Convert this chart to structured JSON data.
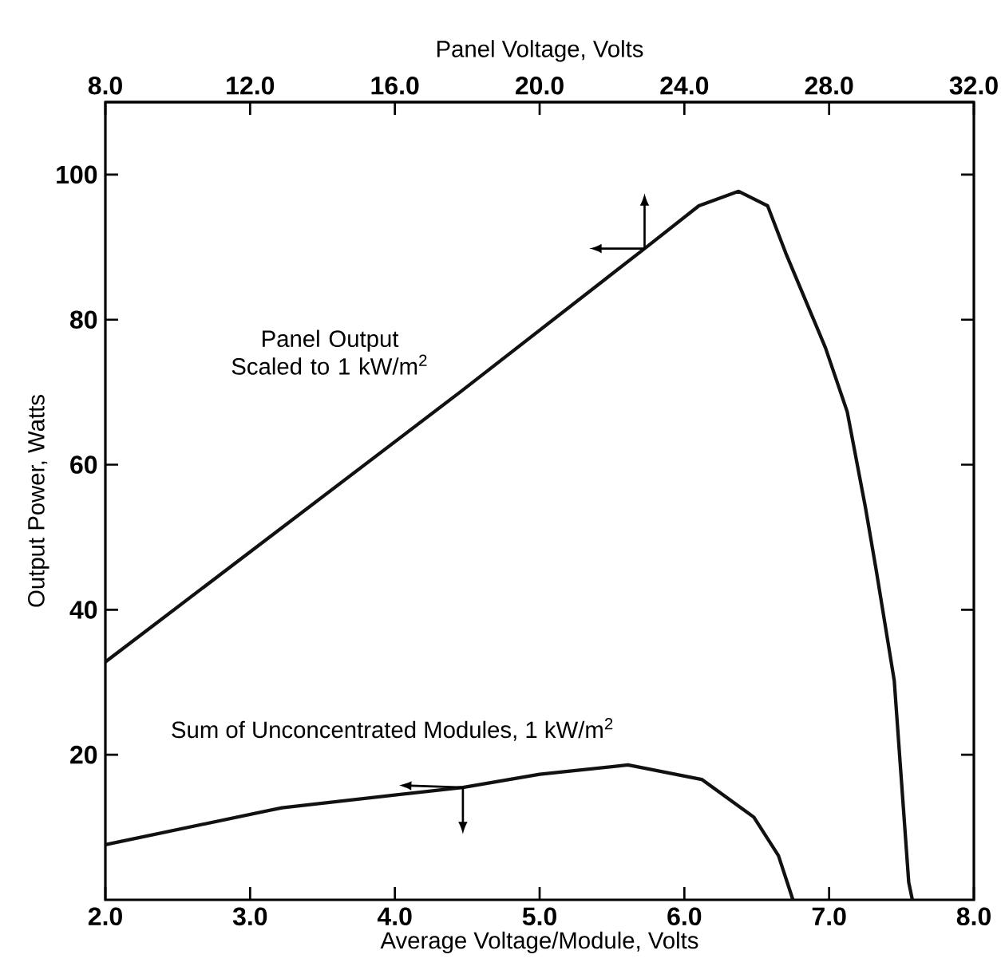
{
  "chart_data": {
    "type": "line",
    "xlabel": "Average Voltage/Module, Volts",
    "x2label": "Panel Voltage, Volts",
    "ylabel": "Output Power, Watts",
    "xlim": [
      2.0,
      8.0
    ],
    "xticks": [
      {
        "value": 2,
        "label": "2.0"
      },
      {
        "value": 3,
        "label": "3.0"
      },
      {
        "value": 4,
        "label": "4.0"
      },
      {
        "value": 5,
        "label": "5.0"
      },
      {
        "value": 6,
        "label": "6.0"
      },
      {
        "value": 7,
        "label": "7.0"
      },
      {
        "value": 8,
        "label": "8.0"
      }
    ],
    "x2lim": [
      8.0,
      32.0
    ],
    "x2ticks": [
      {
        "value": 8,
        "label": "8.0"
      },
      {
        "value": 12,
        "label": "12.0"
      },
      {
        "value": 16,
        "label": "16.0"
      },
      {
        "value": 20,
        "label": "20.0"
      },
      {
        "value": 24,
        "label": "24.0"
      },
      {
        "value": 28,
        "label": "28.0"
      },
      {
        "value": 32,
        "label": "32.0"
      }
    ],
    "ylim": [
      0,
      110
    ],
    "yticks": [
      20,
      40,
      60,
      80,
      100
    ],
    "grid": false,
    "marker": "none",
    "line_style": "solid",
    "series": [
      {
        "name": "Panel Output Scaled to 1 kW/m$^{2}$",
        "axis": "x2",
        "color": "#111111",
        "x": [
          8.0,
          17.8,
          22.9,
          24.4,
          25.5,
          26.3,
          26.8,
          27.9,
          28.5,
          29.0,
          29.3,
          29.8,
          30.2,
          30.3
        ],
        "values": [
          32.8,
          70.0,
          89.8,
          95.7,
          97.7,
          95.7,
          89.2,
          76.1,
          67.3,
          54.2,
          45.5,
          30.2,
          2.4,
          0
        ]
      },
      {
        "name": "Sum of Unconcentrated Modules, 1 kW/m$^{2}$",
        "color": "#111111",
        "x": [
          2.0,
          3.22,
          4.47,
          5.0,
          5.61,
          6.12,
          6.48,
          6.65,
          6.75
        ],
        "values": [
          7.6,
          12.7,
          15.5,
          17.3,
          18.6,
          16.6,
          11.4,
          6.1,
          0
        ]
      }
    ]
  }
}
